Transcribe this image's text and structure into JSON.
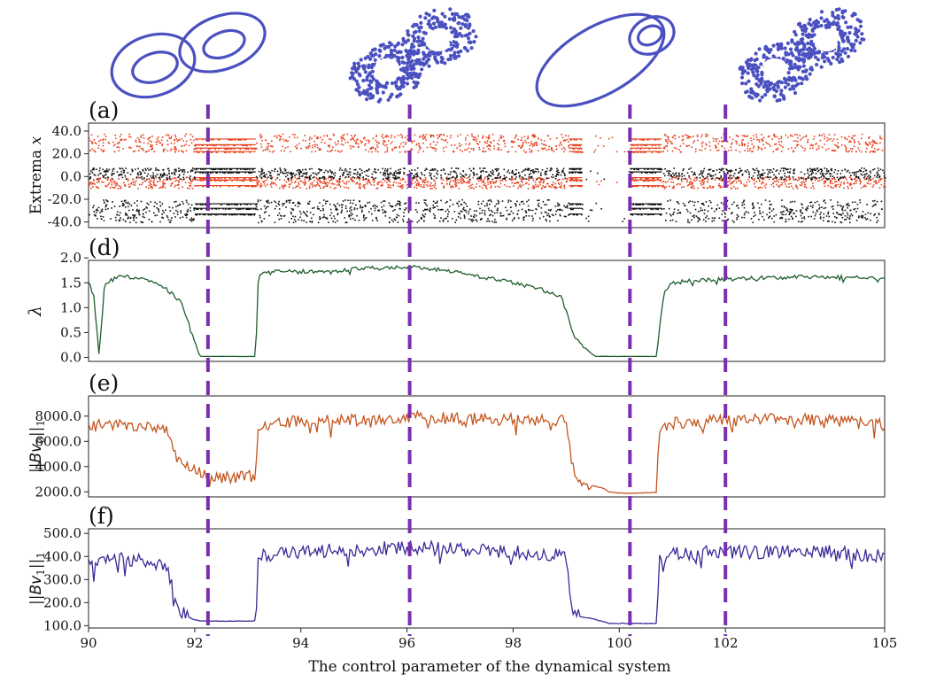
{
  "figure": {
    "xlabel": "The control parameter of the dynamical system",
    "accent_color": "#7a2fb0",
    "marker_lines_x": [
      92.25,
      96.05,
      100.2,
      102.0
    ],
    "attractor_color": "#4a50c0",
    "attractor_styles": [
      "curve",
      "dots",
      "curve",
      "dots"
    ]
  },
  "chart_data": [
    {
      "id": "a",
      "panel_label": "(a)",
      "type": "scatter",
      "ylabel_text": "Extrema ",
      "ylabel_var": "x",
      "xlim": [
        90,
        105
      ],
      "ylim": [
        -45,
        47
      ],
      "yticks": [
        40.0,
        20.0,
        0.0,
        -20.0,
        -40.0
      ],
      "ytick_labels": [
        "40.0",
        "20.0",
        "0.0",
        "-20.0",
        "-40.0"
      ],
      "series": [
        {
          "color": "#e8401c",
          "bands": [
            [
              22,
              38
            ],
            [
              -10,
              0
            ]
          ],
          "periodic_levels": [
            22,
            25,
            28,
            33,
            -8,
            -3,
            -1
          ]
        },
        {
          "color": "#111111",
          "bands": [
            [
              -40,
              -20
            ],
            [
              -2,
              8
            ]
          ],
          "periodic_levels": [
            -33,
            -28,
            -24,
            4,
            7
          ]
        }
      ],
      "periodic_windows": [
        [
          92.0,
          93.15
        ],
        [
          99.05,
          99.3
        ],
        [
          100.2,
          100.8
        ]
      ],
      "gap_window": [
        99.3,
        100.2
      ]
    },
    {
      "id": "d",
      "panel_label": "(d)",
      "type": "line",
      "ylabel_var": "λ",
      "color": "#1e5e2c",
      "xlim": [
        90,
        105
      ],
      "ylim": [
        -0.08,
        1.95
      ],
      "yticks": [
        2.0,
        1.5,
        1.0,
        0.5,
        0.0
      ],
      "ytick_labels": [
        "2.0",
        "1.5",
        "1.0",
        "0.5",
        "0.0"
      ],
      "x": [
        90.0,
        90.1,
        90.2,
        90.3,
        90.5,
        90.75,
        91.0,
        91.25,
        91.5,
        91.75,
        91.85,
        91.95,
        92.0,
        92.1,
        93.15,
        93.2,
        93.5,
        94.0,
        94.5,
        95.0,
        95.5,
        96.0,
        96.5,
        97.0,
        97.5,
        98.0,
        98.5,
        98.9,
        99.05,
        99.15,
        99.3,
        99.45,
        99.55,
        99.7,
        100.2,
        100.7,
        100.8,
        100.85,
        101.0,
        101.5,
        102.0,
        102.5,
        103.0,
        103.5,
        104.0,
        104.5,
        105.0
      ],
      "y": [
        1.5,
        1.25,
        0.02,
        1.45,
        1.6,
        1.62,
        1.6,
        1.5,
        1.35,
        1.1,
        0.8,
        0.45,
        0.3,
        0.02,
        0.02,
        1.65,
        1.72,
        1.73,
        1.72,
        1.78,
        1.8,
        1.82,
        1.78,
        1.7,
        1.6,
        1.5,
        1.38,
        1.22,
        0.8,
        0.4,
        0.25,
        0.1,
        0.02,
        0.02,
        0.02,
        0.02,
        1.0,
        1.3,
        1.5,
        1.55,
        1.57,
        1.6,
        1.6,
        1.62,
        1.62,
        1.6,
        1.6
      ],
      "jitter": 0.04
    },
    {
      "id": "e",
      "panel_label": "(e)",
      "type": "line",
      "ylabel_pre": "||",
      "ylabel_var": "Bv",
      "ylabel_sub": "0",
      "ylabel_post": "||",
      "ylabel_norm": "1",
      "color": "#c4561e",
      "xlim": [
        90,
        105
      ],
      "ylim": [
        1600,
        9600
      ],
      "yticks": [
        8000.0,
        6000.0,
        4000.0,
        2000.0
      ],
      "ytick_labels": [
        "8000.0",
        "6000.0",
        "4000.0",
        "2000.0"
      ],
      "x": [
        90.0,
        90.5,
        91.0,
        91.5,
        91.65,
        91.8,
        91.95,
        92.05,
        92.2,
        92.3,
        93.15,
        93.2,
        94.0,
        95.0,
        96.0,
        96.5,
        97.0,
        98.0,
        99.0,
        99.1,
        99.2,
        99.3,
        99.5,
        99.7,
        99.8,
        100.0,
        100.4,
        100.7,
        100.75,
        101.0,
        102.0,
        103.0,
        104.0,
        105.0
      ],
      "y": [
        7200,
        7400,
        7300,
        6800,
        4600,
        4000,
        3700,
        3500,
        3300,
        3200,
        3200,
        7200,
        7600,
        7700,
        7900,
        7900,
        7800,
        7700,
        7700,
        4600,
        3000,
        2800,
        2500,
        2300,
        2000,
        1900,
        1900,
        1950,
        7000,
        7400,
        7700,
        7700,
        7700,
        7300
      ],
      "jitter": 500
    },
    {
      "id": "f",
      "panel_label": "(f)",
      "type": "line",
      "ylabel_pre": "||",
      "ylabel_var": "Bv",
      "ylabel_sub": "1",
      "ylabel_post": "||",
      "ylabel_norm": "1",
      "color": "#3a2a96",
      "xlim": [
        90,
        105
      ],
      "ylim": [
        90,
        520
      ],
      "yticks": [
        500.0,
        400.0,
        300.0,
        200.0,
        100.0
      ],
      "ytick_labels": [
        "500.0",
        "400.0",
        "300.0",
        "200.0",
        "100.0"
      ],
      "xticks": [
        90,
        92,
        94,
        96,
        98,
        100,
        102,
        105
      ],
      "xtick_labels": [
        "90",
        "92",
        "94",
        "96",
        "98",
        "100",
        "102",
        "105"
      ],
      "x": [
        90.0,
        90.5,
        91.0,
        91.5,
        91.65,
        91.8,
        91.95,
        92.1,
        92.3,
        93.15,
        93.2,
        94.0,
        95.0,
        96.0,
        97.0,
        98.0,
        99.0,
        99.1,
        99.25,
        99.5,
        99.8,
        100.2,
        100.7,
        100.75,
        101.0,
        102.0,
        103.0,
        104.0,
        105.0
      ],
      "y": [
        370,
        390,
        380,
        350,
        170,
        150,
        130,
        120,
        120,
        120,
        400,
        420,
        430,
        440,
        430,
        420,
        400,
        170,
        140,
        130,
        110,
        110,
        110,
        380,
        410,
        420,
        420,
        420,
        400
      ],
      "jitter": 30
    }
  ]
}
